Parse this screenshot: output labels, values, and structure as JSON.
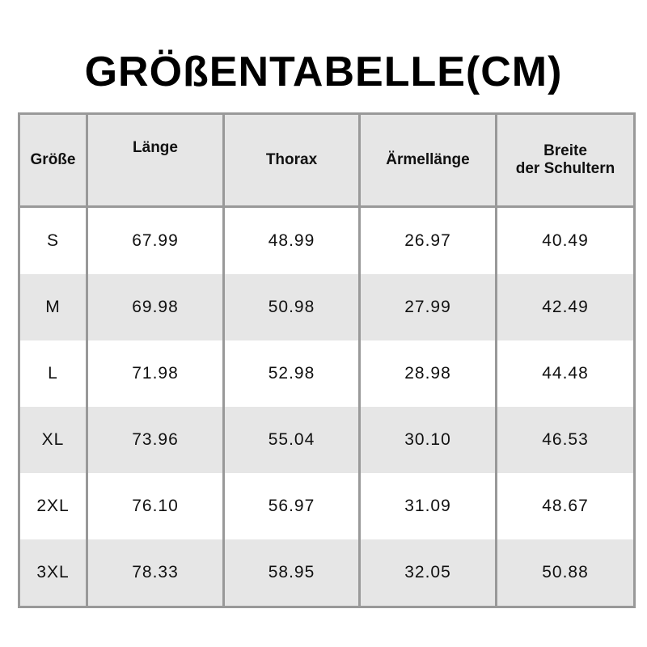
{
  "title": "GRÖßENTABELLE(CM)",
  "headers": [
    "Größe",
    "Länge",
    "Thorax",
    "Ärmellänge",
    "Breite\nder Schultern"
  ],
  "rows": [
    [
      "S",
      "67.99",
      "48.99",
      "26.97",
      "40.49"
    ],
    [
      "M",
      "69.98",
      "50.98",
      "27.99",
      "42.49"
    ],
    [
      "L",
      "71.98",
      "52.98",
      "28.98",
      "44.48"
    ],
    [
      "XL",
      "73.96",
      "55.04",
      "30.10",
      "46.53"
    ],
    [
      "2XL",
      "76.10",
      "56.97",
      "31.09",
      "48.67"
    ],
    [
      "3XL",
      "78.33",
      "58.95",
      "32.05",
      "50.88"
    ]
  ]
}
